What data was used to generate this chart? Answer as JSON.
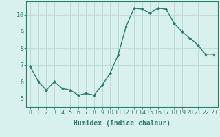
{
  "x": [
    0,
    1,
    2,
    3,
    4,
    5,
    6,
    7,
    8,
    9,
    10,
    11,
    12,
    13,
    14,
    15,
    16,
    17,
    18,
    19,
    20,
    21,
    22,
    23
  ],
  "y": [
    6.9,
    6.0,
    5.5,
    6.0,
    5.6,
    5.5,
    5.2,
    5.3,
    5.2,
    5.8,
    6.5,
    7.6,
    9.3,
    10.4,
    10.35,
    10.1,
    10.4,
    10.35,
    9.5,
    9.0,
    8.6,
    8.2,
    7.6,
    7.6
  ],
  "line_color": "#2d7a6e",
  "marker": "D",
  "marker_size": 2,
  "bg_color": "#d8f0ee",
  "grid_color": "#b8d8d4",
  "xlabel": "Humidex (Indice chaleur)",
  "ylim": [
    4.5,
    10.8
  ],
  "xlim": [
    -0.5,
    23.5
  ],
  "yticks": [
    5,
    6,
    7,
    8,
    9,
    10
  ],
  "xticks": [
    0,
    1,
    2,
    3,
    4,
    5,
    6,
    7,
    8,
    9,
    10,
    11,
    12,
    13,
    14,
    15,
    16,
    17,
    18,
    19,
    20,
    21,
    22,
    23
  ],
  "xlabel_fontsize": 7,
  "tick_fontsize": 6,
  "line_width": 1.0
}
